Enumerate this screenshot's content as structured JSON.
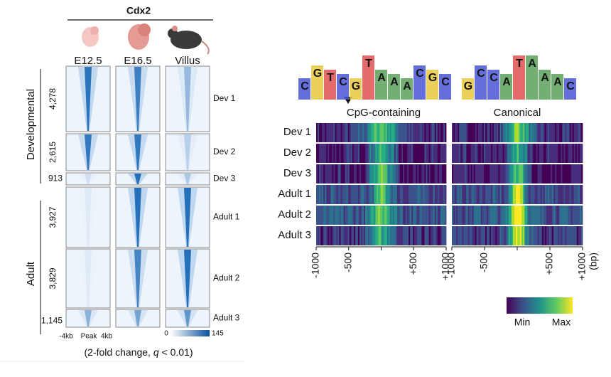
{
  "left_panel": {
    "group_title": "Cdx2",
    "columns": [
      "E12.5",
      "E16.5",
      "Villus"
    ],
    "groups": [
      {
        "label": "Developmental",
        "clusters": [
          {
            "count": "4,278",
            "name": "Dev 1"
          },
          {
            "count": "2,615",
            "name": "Dev 2"
          },
          {
            "count": "913",
            "name": "Dev 3"
          }
        ]
      },
      {
        "label": "Adult",
        "clusters": [
          {
            "count": "3,927",
            "name": "Adult 1"
          },
          {
            "count": "3,829",
            "name": "Adult 2"
          },
          {
            "count": "1,145",
            "name": "Adult 3"
          }
        ]
      }
    ],
    "x_labels": [
      "-4kb",
      "Peak",
      "4kb"
    ],
    "colorbar": {
      "min": "0",
      "max": "145"
    },
    "caption": {
      "prefix": "(2-fold change, ",
      "italic": "q",
      "suffix": " < 0.01)"
    }
  },
  "right_panel": {
    "motifs": [
      {
        "label": "CpG-containing",
        "letters": [
          "C",
          "G",
          "T",
          "C",
          "G",
          "T",
          "A",
          "A",
          "A",
          "C",
          "G",
          "C"
        ]
      },
      {
        "label": "Canonical",
        "letters": [
          "G",
          "C",
          "C",
          "A",
          "T",
          "A",
          "A",
          "A",
          "C"
        ]
      }
    ],
    "rows": [
      "Dev 1",
      "Dev 2",
      "Dev 3",
      "Adult 1",
      "Adult 2",
      "Adult 3"
    ],
    "x_ticks": [
      "-1000",
      "-500",
      "+500",
      "+1000"
    ],
    "x_unit": "(bp)",
    "colorbar": {
      "min": "Min",
      "max": "Max"
    }
  }
}
